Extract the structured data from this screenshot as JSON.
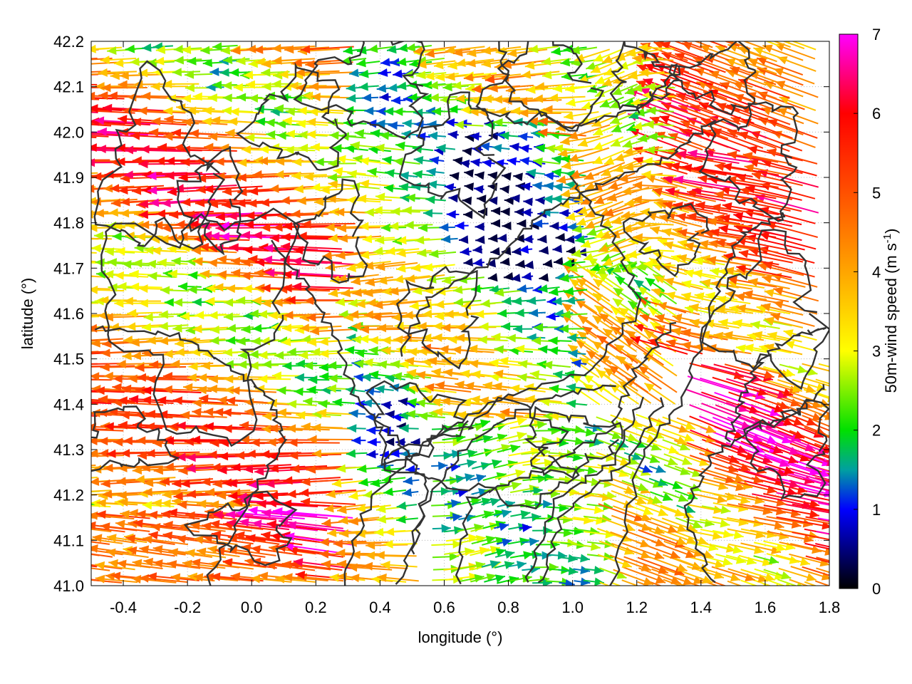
{
  "chart_data": {
    "type": "scatter",
    "subtype": "vector-field",
    "title": "",
    "xlabel": "longitude (°)",
    "ylabel": "latitude (°)",
    "colorbar_label": "50m-wind speed (m s",
    "colorbar_label_sup": "-1",
    "colorbar_label_close": ")",
    "xlim": [
      -0.5,
      1.8
    ],
    "ylim": [
      41.0,
      42.2
    ],
    "x_ticks": [
      "-0.4",
      "-0.2",
      "0.0",
      "0.2",
      "0.4",
      "0.6",
      "0.8",
      "1.0",
      "1.2",
      "1.4",
      "1.6",
      "1.8"
    ],
    "x_tick_values": [
      -0.4,
      -0.2,
      0.0,
      0.2,
      0.4,
      0.6,
      0.8,
      1.0,
      1.2,
      1.4,
      1.6,
      1.8
    ],
    "y_ticks": [
      "41.0",
      "41.1",
      "41.2",
      "41.3",
      "41.4",
      "41.5",
      "41.6",
      "41.7",
      "41.8",
      "41.9",
      "42.0",
      "42.1",
      "42.2"
    ],
    "y_tick_values": [
      41.0,
      41.1,
      41.2,
      41.3,
      41.4,
      41.5,
      41.6,
      41.7,
      41.8,
      41.9,
      42.0,
      42.1,
      42.2
    ],
    "colorbar_range": [
      0,
      7
    ],
    "colorbar_ticks": [
      "0",
      "1",
      "2",
      "3",
      "4",
      "5",
      "6",
      "7"
    ],
    "colorbar_tick_values": [
      0,
      1,
      2,
      3,
      4,
      5,
      6,
      7
    ],
    "colormap": [
      {
        "value": 0,
        "color": "#000000"
      },
      {
        "value": 1,
        "color": "#0000ff"
      },
      {
        "value": 1.5,
        "color": "#00a0a0"
      },
      {
        "value": 2,
        "color": "#00e000"
      },
      {
        "value": 3,
        "color": "#ffff00"
      },
      {
        "value": 4,
        "color": "#ffa500"
      },
      {
        "value": 5,
        "color": "#ff5000"
      },
      {
        "value": 6,
        "color": "#ff0000"
      },
      {
        "value": 7,
        "color": "#ff00ff"
      }
    ],
    "grid": "dotted",
    "contours": "terrain elevation contours (dark gray)",
    "contour_color": "#333333",
    "vector_grid": {
      "lon_start": -0.48,
      "lon_end": 1.78,
      "lon_step": 0.04,
      "lat_start": 41.01,
      "lat_end": 42.19,
      "lat_step": 0.028
    }
  }
}
